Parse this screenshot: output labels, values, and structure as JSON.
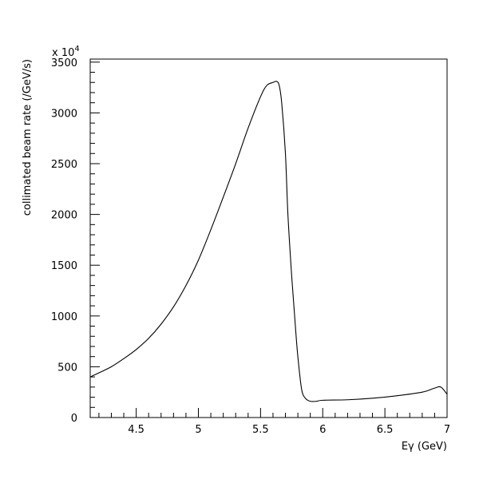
{
  "chart_data": {
    "type": "line",
    "title": "",
    "xlabel": "Eγ (GeV)",
    "ylabel": "collimated beam rate (/GeV/s)",
    "y_multiplier": "x 10",
    "y_multiplier_exponent": "4",
    "xlim": [
      4.13,
      7.0
    ],
    "ylim": [
      0,
      3530
    ],
    "grid": false,
    "x_tick_labels": [
      "4.5",
      "5",
      "5.5",
      "6",
      "6.5",
      "7"
    ],
    "y_tick_labels": [
      "0",
      "500",
      "1000",
      "1500",
      "2000",
      "2500",
      "3000",
      "3500"
    ],
    "series": [
      {
        "x": [
          4.13,
          4.2,
          4.3,
          4.4,
          4.5,
          4.6,
          4.7,
          4.8,
          4.9,
          5.0,
          5.1,
          5.2,
          5.3,
          5.4,
          5.5,
          5.55,
          5.6,
          5.63,
          5.65,
          5.67,
          5.7,
          5.72,
          5.75,
          5.78,
          5.8,
          5.83,
          5.86,
          5.9,
          5.95,
          6.0,
          6.2,
          6.4,
          6.6,
          6.8,
          6.9,
          6.95,
          7.0
        ],
        "y": [
          400,
          440,
          500,
          580,
          670,
          780,
          920,
          1090,
          1300,
          1550,
          1850,
          2170,
          2500,
          2850,
          3160,
          3270,
          3300,
          3310,
          3270,
          3100,
          2600,
          2000,
          1400,
          900,
          600,
          280,
          190,
          160,
          160,
          170,
          175,
          190,
          215,
          250,
          290,
          300,
          230
        ]
      }
    ]
  }
}
